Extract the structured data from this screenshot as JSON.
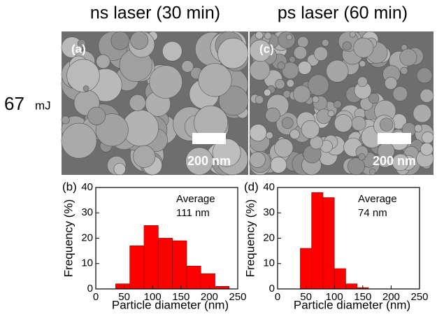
{
  "header": {
    "left_title": "ns laser (30 min)",
    "right_title": "ps laser (60 min)",
    "row_value": "67",
    "row_unit": "mJ"
  },
  "images": [
    {
      "label": "(a)",
      "scale": "200 nm"
    },
    {
      "label": "(c)",
      "scale": "200 nm"
    }
  ],
  "chart_data": [
    {
      "type": "histogram",
      "panel_label": "(b)",
      "annotation": [
        "Average",
        "111 nm"
      ],
      "xlabel": "Particle diameter (nm)",
      "ylabel": "Frequency (%)",
      "bins": [
        35,
        60,
        85,
        110,
        135,
        160,
        185,
        210,
        235
      ],
      "values": [
        2,
        17,
        25,
        20,
        19,
        9,
        6,
        1
      ],
      "color": "#ff0000",
      "xlim": [
        0,
        250
      ],
      "xticks": [
        0,
        50,
        100,
        150,
        200,
        250
      ],
      "ylim": [
        0,
        40
      ],
      "yticks": [
        0,
        10,
        20,
        30,
        40
      ]
    },
    {
      "type": "histogram",
      "panel_label": "(d)",
      "annotation": [
        "Average",
        "74 nm"
      ],
      "xlabel": "Particle diameter (nm)",
      "ylabel": "Frequency (%)",
      "bins": [
        40,
        60,
        80,
        100,
        120,
        140,
        160
      ],
      "values": [
        16,
        38,
        36,
        8,
        2,
        0.5
      ],
      "color": "#ff0000",
      "xlim": [
        0,
        250
      ],
      "xticks": [
        0,
        50,
        100,
        150,
        200,
        250
      ],
      "ylim": [
        0,
        40
      ],
      "yticks": [
        0,
        10,
        20,
        30,
        40
      ]
    }
  ]
}
